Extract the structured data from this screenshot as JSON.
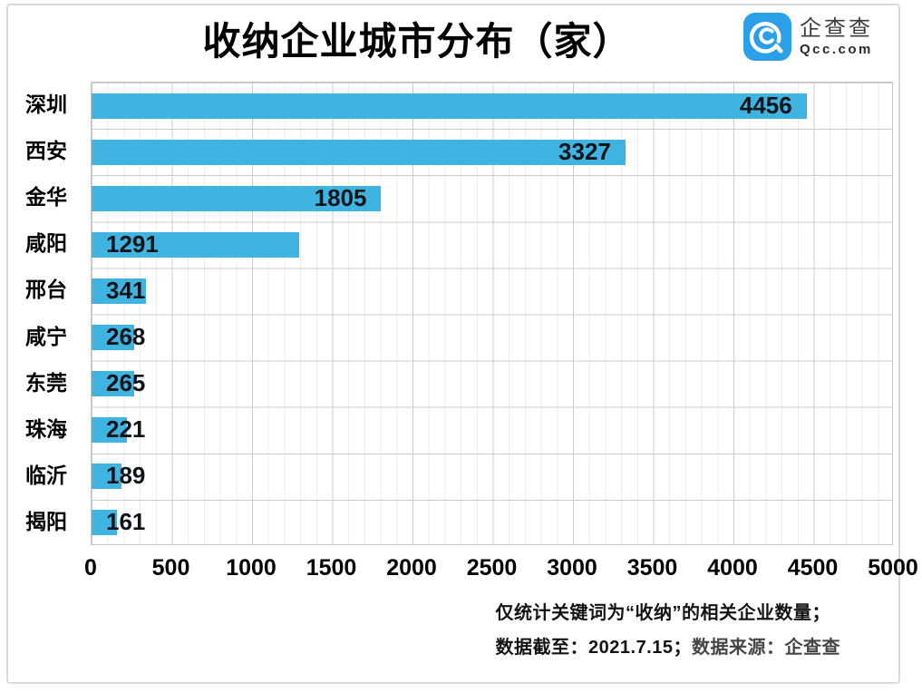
{
  "title": "收纳企业城市分布（家）",
  "logo": {
    "icon": "qcc-magnifier-spiral",
    "name_cn": "企查查",
    "name_en": "Qcc.com",
    "brand_color": "#2B9FE8"
  },
  "chart_data": {
    "type": "bar",
    "orientation": "horizontal",
    "title": "收纳企业城市分布（家）",
    "categories": [
      "深圳",
      "西安",
      "金华",
      "咸阳",
      "邢台",
      "咸宁",
      "东莞",
      "珠海",
      "临沂",
      "揭阳"
    ],
    "values": [
      4456,
      3327,
      1805,
      1291,
      341,
      268,
      265,
      221,
      189,
      161
    ],
    "xlabel": "",
    "ylabel": "",
    "xlim": [
      0,
      5000
    ],
    "x_ticks": [
      0,
      500,
      1000,
      1500,
      2000,
      2500,
      3000,
      3500,
      4000,
      4500,
      5000
    ],
    "grid": "graph-paper, minor every 100, major every 500",
    "legend": "none",
    "bar_color": "#3FB4E0",
    "value_label_color": "#101418"
  },
  "footer": {
    "line1": "仅统计关键词为“收纳”的相关企业数量；",
    "line2_prefix": "数据截至：2021.7.15；",
    "line2_suffix": "数据来源：企查查"
  }
}
